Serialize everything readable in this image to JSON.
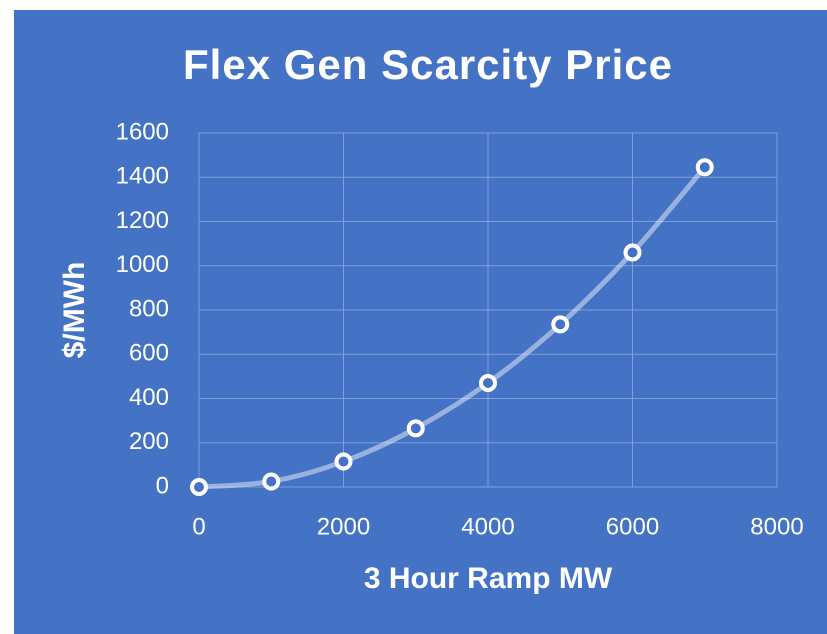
{
  "chart_data": {
    "type": "scatter",
    "title": "Flex Gen Scarcity Price",
    "x_label": "3 Hour Ramp MW",
    "y_label": "$/MWh",
    "x": [
      0,
      1000,
      2000,
      3000,
      4000,
      5000,
      6000,
      7000
    ],
    "values": [
      0,
      25,
      115,
      265,
      470,
      735,
      1060,
      1445
    ],
    "color": "#ffffff",
    "background": "#4472c4",
    "smooth": true,
    "grid": true,
    "xlim": [
      0,
      8000
    ],
    "xticks": [
      0,
      2000,
      4000,
      6000,
      8000
    ],
    "ylim": [
      0,
      1600
    ],
    "yticks": [
      0,
      200,
      400,
      600,
      800,
      1000,
      1200,
      1400,
      1600
    ]
  }
}
